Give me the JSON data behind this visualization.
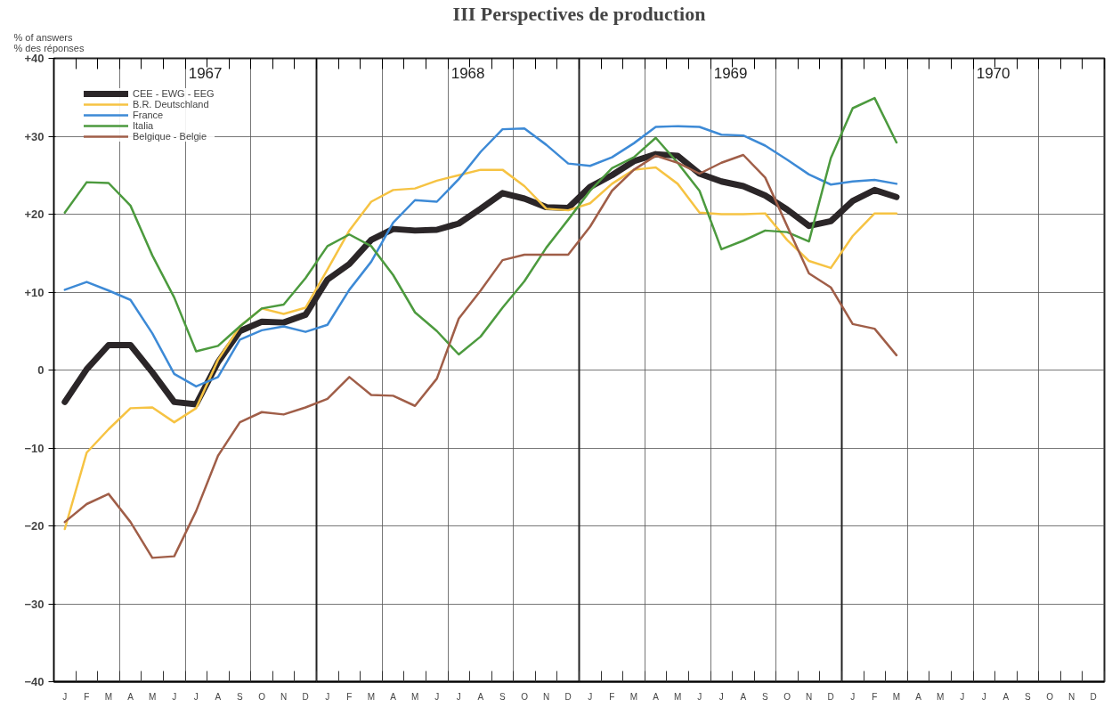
{
  "chart_data": {
    "type": "line",
    "title": "III Perspectives de production",
    "ylabel": "% of answers\n% des réponses",
    "categories": [
      "J",
      "F",
      "M",
      "A",
      "M",
      "J",
      "J",
      "A",
      "S",
      "O",
      "N",
      "D",
      "J",
      "F",
      "M",
      "A",
      "M",
      "J",
      "J",
      "A",
      "S",
      "O",
      "N",
      "D",
      "J",
      "F",
      "M",
      "A",
      "M",
      "J",
      "J",
      "A",
      "S",
      "O",
      "N",
      "D",
      "J",
      "F",
      "M",
      "A",
      "M",
      "J",
      "J",
      "A",
      "S",
      "O",
      "N",
      "D"
    ],
    "series": [
      {
        "name": "CEE - EWG - EEG",
        "color": "#2b2628",
        "values": [
          -4.1,
          0.1,
          3.2,
          3.2,
          -0.3,
          -4.1,
          -4.4,
          1.0,
          5.0,
          6.2,
          6.1,
          7.1,
          11.6,
          13.6,
          16.7,
          18.1,
          17.9,
          18.0,
          18.8,
          20.7,
          22.7,
          22.0,
          20.9,
          20.8,
          23.5,
          25.0,
          26.8,
          27.7,
          27.5,
          25.2,
          24.2,
          23.6,
          22.4,
          20.6,
          18.5,
          19.1,
          21.7,
          23.1,
          22.2,
          null,
          null,
          null,
          null,
          null,
          null,
          null,
          null,
          null
        ]
      },
      {
        "name": "B.R. Deutschland",
        "color": "#f6c343",
        "values": [
          -20.4,
          -10.6,
          -7.6,
          -4.9,
          -4.8,
          -6.7,
          -4.9,
          1.3,
          5.6,
          7.9,
          7.2,
          8.0,
          12.9,
          17.9,
          21.6,
          23.1,
          23.3,
          24.3,
          25.0,
          25.7,
          25.7,
          23.6,
          20.7,
          20.5,
          21.4,
          23.9,
          25.7,
          26.0,
          23.9,
          20.2,
          20.0,
          20.0,
          20.1,
          16.7,
          14.0,
          13.1,
          17.2,
          20.1,
          20.1,
          null,
          null,
          null,
          null,
          null,
          null,
          null,
          null,
          null
        ]
      },
      {
        "name": "France",
        "color": "#3d8ad6",
        "values": [
          10.3,
          11.3,
          10.2,
          9.0,
          4.7,
          -0.5,
          -2.1,
          -0.9,
          3.9,
          5.1,
          5.6,
          4.9,
          5.8,
          10.3,
          13.9,
          18.9,
          21.8,
          21.6,
          24.5,
          28.0,
          30.9,
          31.0,
          28.9,
          26.5,
          26.2,
          27.3,
          29.1,
          31.2,
          31.3,
          31.2,
          30.2,
          30.1,
          28.8,
          27.0,
          25.1,
          23.8,
          24.2,
          24.4,
          23.9,
          null,
          null,
          null,
          null,
          null,
          null,
          null,
          null,
          null
        ]
      },
      {
        "name": "Italia",
        "color": "#4c9a3e",
        "values": [
          20.2,
          24.1,
          24.0,
          21.1,
          14.7,
          9.3,
          2.4,
          3.1,
          5.6,
          7.9,
          8.4,
          11.8,
          15.9,
          17.4,
          15.9,
          12.2,
          7.4,
          5.0,
          2.0,
          4.3,
          8.0,
          11.4,
          15.7,
          19.3,
          23.0,
          25.9,
          27.3,
          29.8,
          26.6,
          23.0,
          15.5,
          16.6,
          17.9,
          17.7,
          16.5,
          27.2,
          33.6,
          34.9,
          29.2,
          null,
          null,
          null,
          null,
          null,
          null,
          null,
          null,
          null
        ]
      },
      {
        "name": "Belgique - Belgie",
        "color": "#a05e48",
        "values": [
          -19.5,
          -17.2,
          -15.9,
          -19.5,
          -24.1,
          -23.9,
          -18.1,
          -11.0,
          -6.7,
          -5.4,
          -5.7,
          -4.8,
          -3.7,
          -0.9,
          -3.2,
          -3.3,
          -4.6,
          -1.1,
          6.6,
          10.2,
          14.1,
          14.8,
          14.8,
          14.8,
          18.4,
          23.0,
          25.7,
          27.5,
          26.6,
          25.2,
          26.6,
          27.6,
          24.7,
          18.5,
          12.4,
          10.6,
          5.9,
          5.3,
          1.9,
          null,
          null,
          null,
          null,
          null,
          null,
          null,
          null,
          null
        ]
      }
    ],
    "ylim": [
      -40,
      40
    ],
    "yticks": [
      {
        "value": 40,
        "label": "+40"
      },
      {
        "value": 30,
        "label": "+30"
      },
      {
        "value": 20,
        "label": "+20"
      },
      {
        "value": 10,
        "label": "+10"
      },
      0,
      -10,
      -20,
      -30,
      -40
    ],
    "annotations": [
      "1967",
      "1968",
      "1969",
      "1970"
    ],
    "grid": true,
    "legend": "top left",
    "marker": "none",
    "line_style": "solid"
  }
}
